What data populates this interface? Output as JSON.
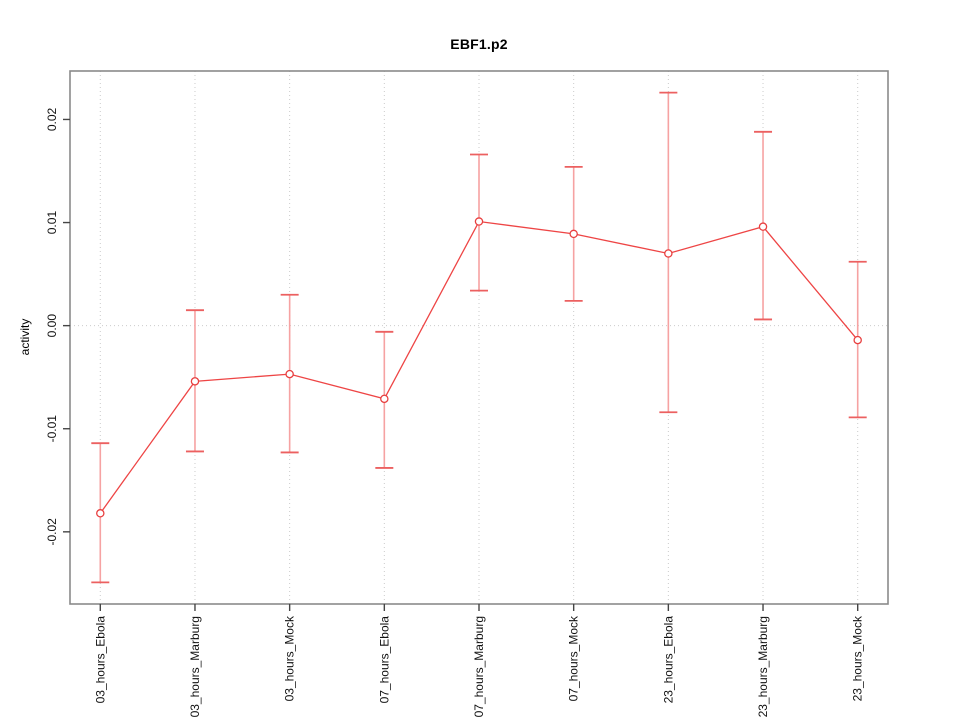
{
  "chart_data": {
    "type": "line",
    "title": "EBF1.p2",
    "ylabel": "activity",
    "xlabel": "",
    "categories": [
      "03_hours_Ebola",
      "03_hours_Marburg",
      "03_hours_Mock",
      "07_hours_Ebola",
      "07_hours_Marburg",
      "07_hours_Mock",
      "23_hours_Ebola",
      "23_hours_Marburg",
      "23_hours_Mock"
    ],
    "series": [
      {
        "name": "EBF1.p2 activity",
        "values": [
          -0.0182,
          -0.0054,
          -0.0047,
          -0.0071,
          0.0101,
          0.0089,
          0.007,
          0.0096,
          -0.0014
        ],
        "error_low": [
          -0.0249,
          -0.0122,
          -0.0123,
          -0.0138,
          0.0034,
          0.0024,
          -0.0084,
          0.0006,
          -0.0089
        ],
        "error_high": [
          -0.0114,
          0.0015,
          0.003,
          -0.0006,
          0.0166,
          0.0154,
          0.0226,
          0.0188,
          0.0062
        ]
      }
    ],
    "yticks": [
      0.02,
      0.01,
      0.0,
      -0.01,
      -0.02
    ],
    "ytick_labels": [
      "0.02",
      "0.01",
      "0.00",
      "-0.01",
      "-0.02"
    ],
    "ylim": [
      -0.027,
      0.0247
    ],
    "legend_position": "none",
    "grid": {
      "vertical_at_categories": true,
      "horizontal_at_zero": true,
      "style": "dotted"
    },
    "marker": "open-circle",
    "colors": {
      "series_line": "#ee4545",
      "marker_stroke": "#e84040",
      "error_bar_stem": "#f6a2a2",
      "error_bar_cap": "#ec6060",
      "grid": "#cbcbcb",
      "box": "#8a8a8a",
      "tick": "#454545",
      "tick_text": "#111111"
    }
  }
}
